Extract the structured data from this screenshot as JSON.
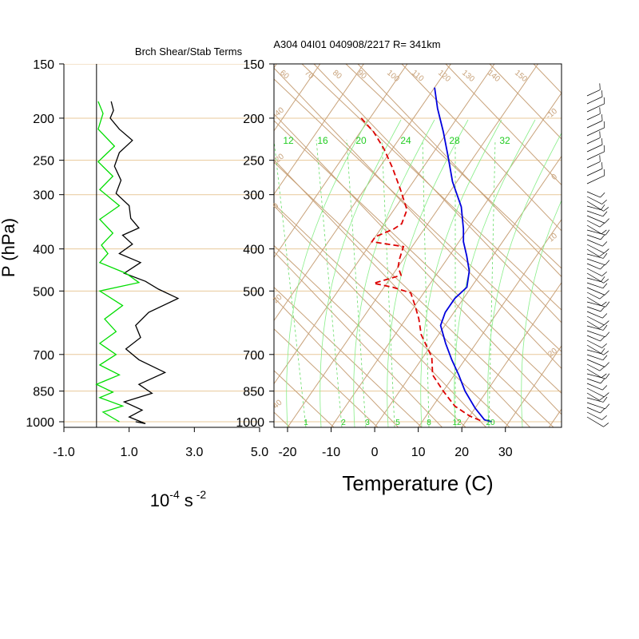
{
  "chart_data": [
    {
      "type": "line",
      "title": "Brch Shear/Stab Terms",
      "xlabel_base": "10",
      "xlabel_exp1": "-4",
      "xlabel_unit": "s",
      "xlabel_exp2": "-2",
      "ylabel": "P (hPa)",
      "xlim": [
        -1.0,
        5.0
      ],
      "x_ticks": [
        "-1.0",
        "1.0",
        "3.0",
        "5.0"
      ],
      "x_tick_values": [
        -1,
        1,
        3,
        5
      ],
      "ylim": [
        1030,
        150
      ],
      "y_scale": "log",
      "p_levels": [
        150,
        200,
        250,
        300,
        400,
        500,
        700,
        850,
        1000
      ],
      "p_labels": [
        "150",
        "200",
        "250",
        "300",
        "400",
        "500",
        "700",
        "850",
        "1000"
      ],
      "grid": true,
      "zero_line": 0,
      "series": [
        {
          "color": "#000000",
          "points": [
            [
              0.45,
              183
            ],
            [
              0.52,
              192
            ],
            [
              0.42,
              200
            ],
            [
              0.7,
              212
            ],
            [
              1.1,
              225
            ],
            [
              0.7,
              240
            ],
            [
              0.55,
              258
            ],
            [
              0.75,
              278
            ],
            [
              0.6,
              298
            ],
            [
              1.0,
              318
            ],
            [
              1.05,
              340
            ],
            [
              1.3,
              358
            ],
            [
              0.8,
              372
            ],
            [
              1.1,
              390
            ],
            [
              0.7,
              410
            ],
            [
              1.35,
              430
            ],
            [
              0.85,
              455
            ],
            [
              1.5,
              475
            ],
            [
              1.9,
              495
            ],
            [
              2.5,
              520
            ],
            [
              1.6,
              560
            ],
            [
              1.2,
              600
            ],
            [
              1.35,
              640
            ],
            [
              0.9,
              680
            ],
            [
              1.3,
              720
            ],
            [
              2.1,
              770
            ],
            [
              1.3,
              820
            ],
            [
              1.7,
              860
            ],
            [
              0.85,
              900
            ],
            [
              1.4,
              940
            ],
            [
              1.0,
              975
            ],
            [
              1.5,
              1010
            ],
            [
              1.2,
              1000
            ]
          ]
        },
        {
          "color": "#00dd00",
          "points": [
            [
              0.05,
              183
            ],
            [
              0.2,
              195
            ],
            [
              0.05,
              212
            ],
            [
              0.55,
              232
            ],
            [
              0.05,
              252
            ],
            [
              0.5,
              272
            ],
            [
              0.1,
              292
            ],
            [
              0.7,
              318
            ],
            [
              0.1,
              342
            ],
            [
              0.5,
              368
            ],
            [
              0.15,
              392
            ],
            [
              0.35,
              410
            ],
            [
              0.1,
              430
            ],
            [
              0.9,
              455
            ],
            [
              1.3,
              478
            ],
            [
              0.1,
              500
            ],
            [
              0.8,
              540
            ],
            [
              0.25,
              580
            ],
            [
              0.6,
              620
            ],
            [
              0.1,
              660
            ],
            [
              0.6,
              700
            ],
            [
              0.1,
              740
            ],
            [
              0.7,
              780
            ],
            [
              0.0,
              820
            ],
            [
              0.5,
              855
            ],
            [
              0.1,
              880
            ],
            [
              0.8,
              920
            ],
            [
              0.2,
              950
            ],
            [
              0.55,
              985
            ],
            [
              0.7,
              1000
            ]
          ]
        }
      ]
    },
    {
      "type": "line",
      "title": "A304 04I01 040908/2217 R= 341km",
      "xlabel": "Temperature (C)",
      "xlim": [
        -24,
        42
      ],
      "x_ticks": [
        "-20",
        "-10",
        "0",
        "10",
        "20",
        "30"
      ],
      "x_tick_values": [
        -20,
        -10,
        0,
        10,
        20,
        30
      ],
      "ylim": [
        1030,
        150
      ],
      "y_scale": "log",
      "p_levels": [
        150,
        200,
        250,
        300,
        400,
        500,
        700,
        850,
        1000
      ],
      "p_labels": [
        "150",
        "200",
        "250",
        "300",
        "400",
        "500",
        "700",
        "850",
        "1000"
      ],
      "skew_t_per_log10_p": 68.7,
      "isotherms_tan": [
        -110,
        -100,
        -90,
        -80,
        -70,
        -60,
        -50,
        -40,
        -30,
        -20,
        -10,
        0,
        10,
        20,
        30,
        40
      ],
      "isotherm_labels": [
        "60",
        "70",
        "80",
        "90",
        "100",
        "110",
        "120",
        "130",
        "140",
        "150"
      ],
      "dry_adiabat_labels": [
        "-40",
        "-20",
        "0",
        "20",
        "40",
        "-10",
        "0",
        "10",
        "20"
      ],
      "mixing_ratio_labels": [
        "12",
        "16",
        "20",
        "24",
        "28",
        "32"
      ],
      "mixing_ratio_bottom_labels": [
        "1",
        "2",
        "3",
        "5",
        "8",
        "12",
        "20"
      ],
      "series": [
        {
          "color": "#0000dd",
          "dash": "solid",
          "points": [
            [
              -40,
              170
            ],
            [
              -36,
              190
            ],
            [
              -31,
              215
            ],
            [
              -26,
              245
            ],
            [
              -21,
              280
            ],
            [
              -15,
              320
            ],
            [
              -11,
              360
            ],
            [
              -9,
              385
            ],
            [
              -6,
              415
            ],
            [
              -3,
              450
            ],
            [
              -1,
              490
            ],
            [
              -2,
              520
            ],
            [
              -2,
              560
            ],
            [
              -1,
              600
            ],
            [
              3,
              660
            ],
            [
              7,
              720
            ],
            [
              11,
              780
            ],
            [
              15,
              850
            ],
            [
              20,
              930
            ],
            [
              24,
              990
            ],
            [
              26,
              1000
            ]
          ]
        },
        {
          "color": "#dd0000",
          "dash": "dashed",
          "points": [
            [
              -52,
              200
            ],
            [
              -47,
              215
            ],
            [
              -42,
              235
            ],
            [
              -37,
              260
            ],
            [
              -32,
              290
            ],
            [
              -27,
              325
            ],
            [
              -26,
              350
            ],
            [
              -27,
              360
            ],
            [
              -30,
              375
            ],
            [
              -30,
              385
            ],
            [
              -22,
              395
            ],
            [
              -21,
              420
            ],
            [
              -20,
              440
            ],
            [
              -18,
              460
            ],
            [
              -23,
              480
            ],
            [
              -18,
              490
            ],
            [
              -13,
              505
            ],
            [
              -10,
              540
            ],
            [
              -7,
              580
            ],
            [
              -4,
              630
            ],
            [
              2,
              710
            ],
            [
              5,
              780
            ],
            [
              10,
              850
            ],
            [
              15,
              920
            ],
            [
              20,
              970
            ],
            [
              24,
              1000
            ]
          ]
        }
      ],
      "wind_barbs": true
    }
  ]
}
